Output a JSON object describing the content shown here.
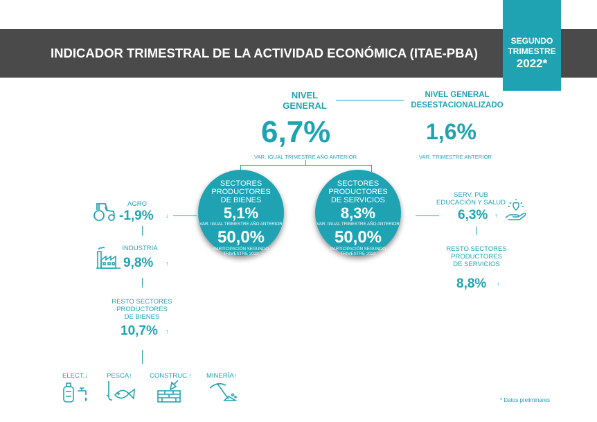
{
  "header": {
    "title": "INDICADOR TRIMESTRAL DE LA ACTIVIDAD ECONÓMICA (ITAE-PBA)"
  },
  "badge": {
    "line1": "SEGUNDO",
    "line2": "TRIMESTRE",
    "line3": "2022*"
  },
  "nivel_general": {
    "label1": "NIVEL",
    "label2": "GENERAL",
    "value": "6,7%",
    "note": "VAR. IGUAL TRIMESTRE AÑO ANTERIOR"
  },
  "desest": {
    "label1": "NIVEL GENERAL",
    "label2": "DESESTACIONALIZADO",
    "value": "1,6%",
    "note": "VAR.  TRIMESTRE  ANTERIOR"
  },
  "bienes": {
    "title1": "SECTORES",
    "title2": "PRODUCTORES",
    "title3": "DE BIENES",
    "value": "5,1%",
    "note": "VAR. IGUAL TRIMESTRE AÑO ANTERIOR",
    "share": "50,0%",
    "share_note1": "PARTICIPACIÓN SEGUNDO",
    "share_note2": "TRIMESTRE 2022"
  },
  "servicios": {
    "title1": "SECTORES",
    "title2": "PRODUCTORES",
    "title3": "DE SERVICIOS",
    "value": "8,3%",
    "note": "VAR. IGUAL TRIMESTRE  AÑO ANTERIOR",
    "share": "50,0%",
    "share_note1": "PARTICIPACIÓN SEGUNDO",
    "share_note2": "TRIMESTRE 2022"
  },
  "agro": {
    "label": "AGRO",
    "value": "-1,9%",
    "arrow": "↓"
  },
  "industria": {
    "label": "INDUSTRIA",
    "value": "9,8%",
    "arrow": "↑"
  },
  "resto_bienes": {
    "label1": "RESTO SECTORES",
    "label2": "PRODUCTORES",
    "label3": "DE BIENES",
    "value": "10,7%",
    "arrow": "↑"
  },
  "serv_pub": {
    "label1": "SERV. PUB",
    "label2": "EDUCACIÓN Y SALUD",
    "value": "6,3%",
    "arrow": "↑"
  },
  "resto_servicios": {
    "label1": "RESTO SECTORES",
    "label2": "PRODUCTORES",
    "label3": "DE SERVICIOS",
    "value": "8,8%",
    "arrow": "↑"
  },
  "sub_sectors": [
    {
      "label": "ELECT.",
      "arrow": "↓",
      "icon": "gas-tank-icon"
    },
    {
      "label": "PESCA",
      "arrow": "↑",
      "icon": "fish-icon"
    },
    {
      "label": "CONSTRUC.",
      "arrow": "↑",
      "icon": "brick-trowel-icon"
    },
    {
      "label": "MINERÍA",
      "arrow": "↑",
      "icon": "pickaxe-icon"
    }
  ],
  "icons": {
    "agro": "tractor-icon",
    "industria": "factory-icon",
    "serv_pub": "hand-heart-icon"
  },
  "footnote": "* Datos preliminares",
  "colors": {
    "accent": "#1fa3b3",
    "header_bg": "#4a4a4a"
  }
}
